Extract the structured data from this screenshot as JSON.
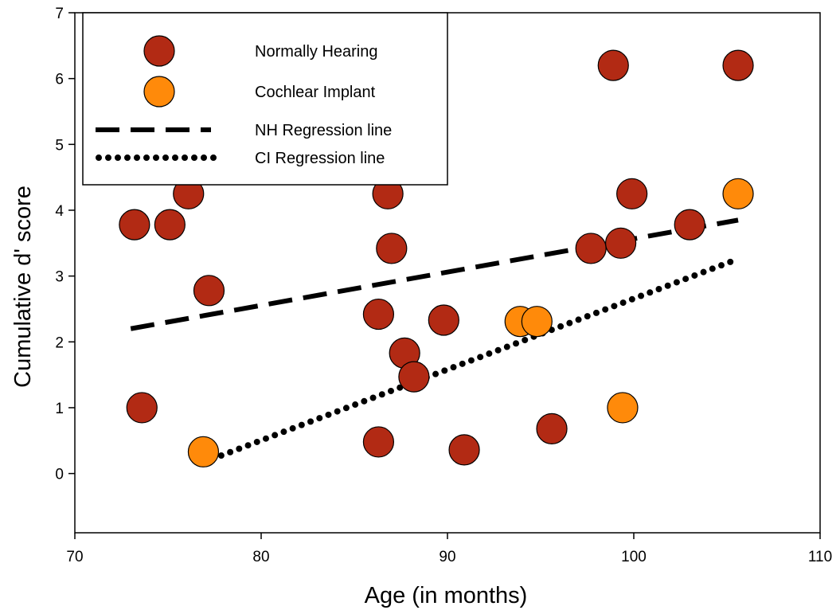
{
  "chart_data": {
    "type": "scatter",
    "xlabel": "Age (in months)",
    "ylabel": "Cumulative d' score",
    "xlim": [
      70,
      110
    ],
    "ylim": [
      -0.9,
      7
    ],
    "xticks": [
      70,
      80,
      90,
      100,
      110
    ],
    "yticks": [
      0,
      1,
      2,
      3,
      4,
      5,
      6,
      7
    ],
    "grid": false,
    "legend_position": "top-left",
    "series": [
      {
        "name": "Normally Hearing",
        "color": "#b22a14",
        "marker": "circle",
        "points": [
          [
            73.2,
            3.78
          ],
          [
            73.6,
            1.0
          ],
          [
            75.1,
            3.78
          ],
          [
            76.1,
            4.25
          ],
          [
            77.2,
            2.78
          ],
          [
            86.3,
            2.42
          ],
          [
            86.3,
            0.48
          ],
          [
            86.8,
            4.25
          ],
          [
            87.0,
            3.42
          ],
          [
            87.7,
            1.83
          ],
          [
            88.2,
            1.47
          ],
          [
            89.8,
            2.33
          ],
          [
            90.9,
            0.36
          ],
          [
            95.6,
            0.68
          ],
          [
            97.7,
            3.42
          ],
          [
            98.9,
            6.2
          ],
          [
            99.3,
            3.5
          ],
          [
            99.9,
            4.25
          ],
          [
            103.0,
            3.78
          ],
          [
            105.6,
            6.2
          ]
        ]
      },
      {
        "name": "Cochlear Implant",
        "color": "#ff8a0a",
        "marker": "circle",
        "points": [
          [
            76.9,
            0.33
          ],
          [
            93.9,
            2.31
          ],
          [
            94.8,
            2.31
          ],
          [
            99.4,
            1.0
          ],
          [
            105.6,
            4.25
          ]
        ]
      }
    ],
    "regression_lines": [
      {
        "name": "NH Regression line",
        "style": "dashed",
        "x": [
          73,
          105.6
        ],
        "y": [
          2.2,
          3.85
        ]
      },
      {
        "name": "CI Regression line",
        "style": "dotted",
        "x": [
          76.9,
          105.6
        ],
        "y": [
          0.17,
          3.26
        ]
      }
    ]
  }
}
